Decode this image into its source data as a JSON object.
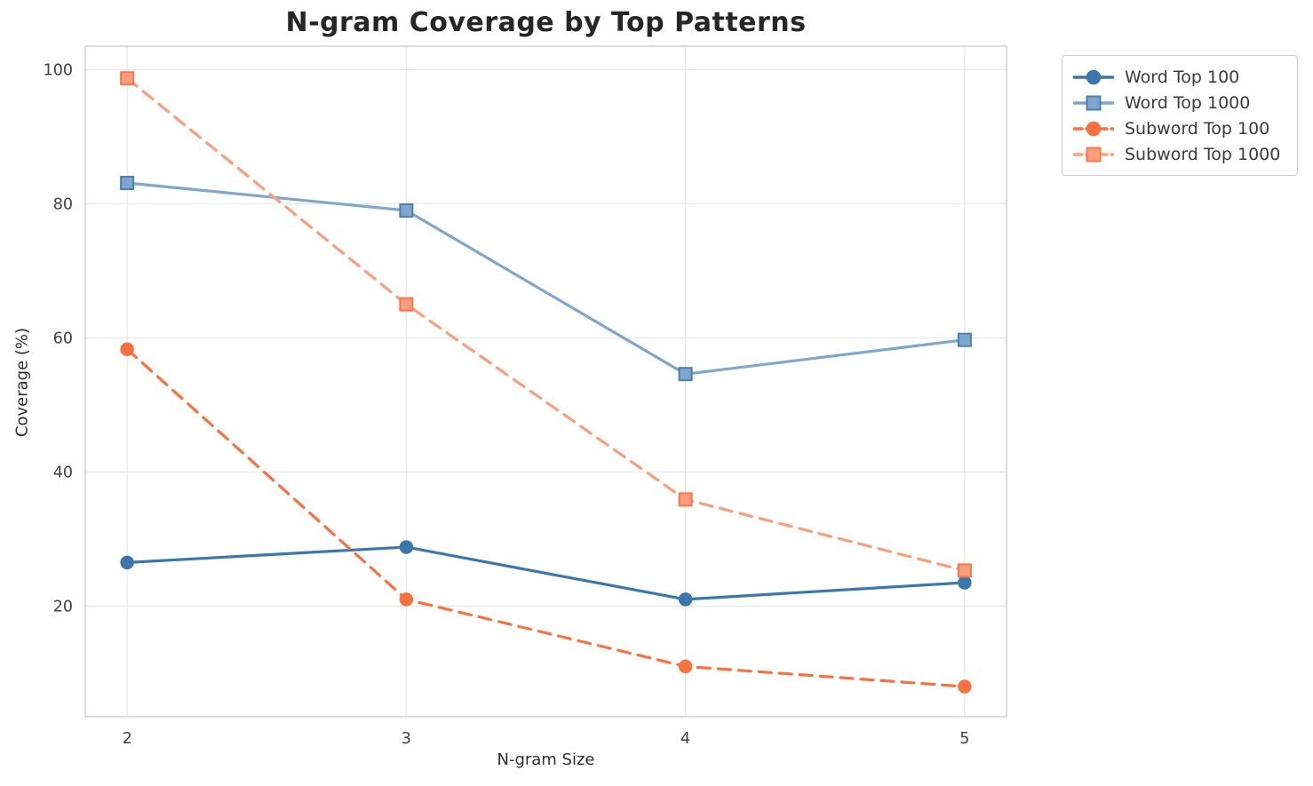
{
  "chart_data": {
    "type": "line",
    "title": "N-gram Coverage by Top Patterns",
    "xlabel": "N-gram Size",
    "ylabel": "Coverage (%)",
    "x": [
      2,
      3,
      4,
      5
    ],
    "xticks": [
      2,
      3,
      4,
      5
    ],
    "yticks": [
      20,
      40,
      60,
      80,
      100
    ],
    "xlim": [
      1.85,
      5.15
    ],
    "ylim": [
      3.5,
      103.5
    ],
    "grid": true,
    "grid_color": "#e9e9e9",
    "spine_color": "#d4d4d4",
    "legend_position": "outside-upper-right",
    "series": [
      {
        "name": "Word Top 100",
        "values": [
          26.5,
          28.8,
          21.0,
          23.5
        ],
        "color": "#3b76ad",
        "edge": "#3b76ad",
        "line": "solid",
        "marker": "circle"
      },
      {
        "name": "Word Top 1000",
        "values": [
          83.1,
          79.0,
          54.6,
          59.7
        ],
        "color": "#7fa6cc",
        "edge": "#4a7fb2",
        "line": "solid",
        "marker": "square"
      },
      {
        "name": "Subword Top 100",
        "values": [
          58.3,
          21.0,
          11.0,
          8.0
        ],
        "color": "#f8713e",
        "edge": "#f8713e",
        "line": "dashed",
        "marker": "circle"
      },
      {
        "name": "Subword Top 1000",
        "values": [
          98.7,
          65.0,
          35.9,
          25.3
        ],
        "color": "#fb9e7b",
        "edge": "#f8764a",
        "line": "dashed",
        "marker": "square"
      }
    ]
  }
}
